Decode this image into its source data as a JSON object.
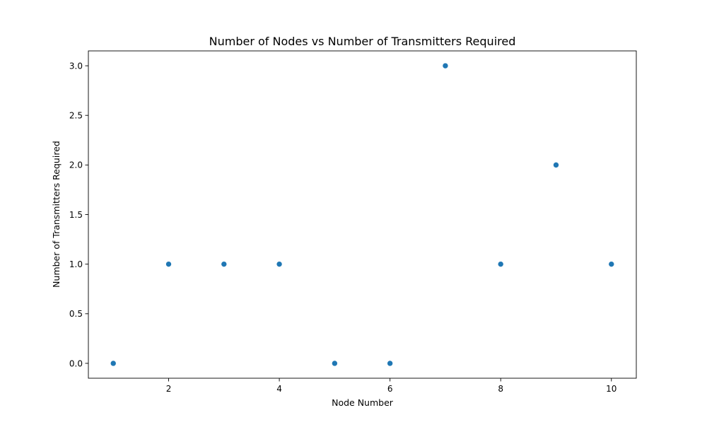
{
  "chart_data": {
    "type": "scatter",
    "title": "Number of Nodes vs Number of Transmitters Required",
    "xlabel": "Node Number",
    "ylabel": "Number of Transmitters Required",
    "x": [
      1,
      2,
      3,
      4,
      5,
      6,
      7,
      8,
      9,
      10
    ],
    "y": [
      0,
      1,
      1,
      1,
      0,
      0,
      3,
      1,
      2,
      1
    ],
    "xlim": [
      0.55,
      10.45
    ],
    "ylim": [
      -0.15,
      3.15
    ],
    "xticks": [
      2,
      4,
      6,
      8,
      10
    ],
    "xtick_labels": [
      "2",
      "4",
      "6",
      "8",
      "10"
    ],
    "yticks": [
      0.0,
      0.5,
      1.0,
      1.5,
      2.0,
      2.5,
      3.0
    ],
    "ytick_labels": [
      "0.0",
      "0.5",
      "1.0",
      "1.5",
      "2.0",
      "2.5",
      "3.0"
    ],
    "grid": false,
    "marker_color": "#1f77b4"
  }
}
